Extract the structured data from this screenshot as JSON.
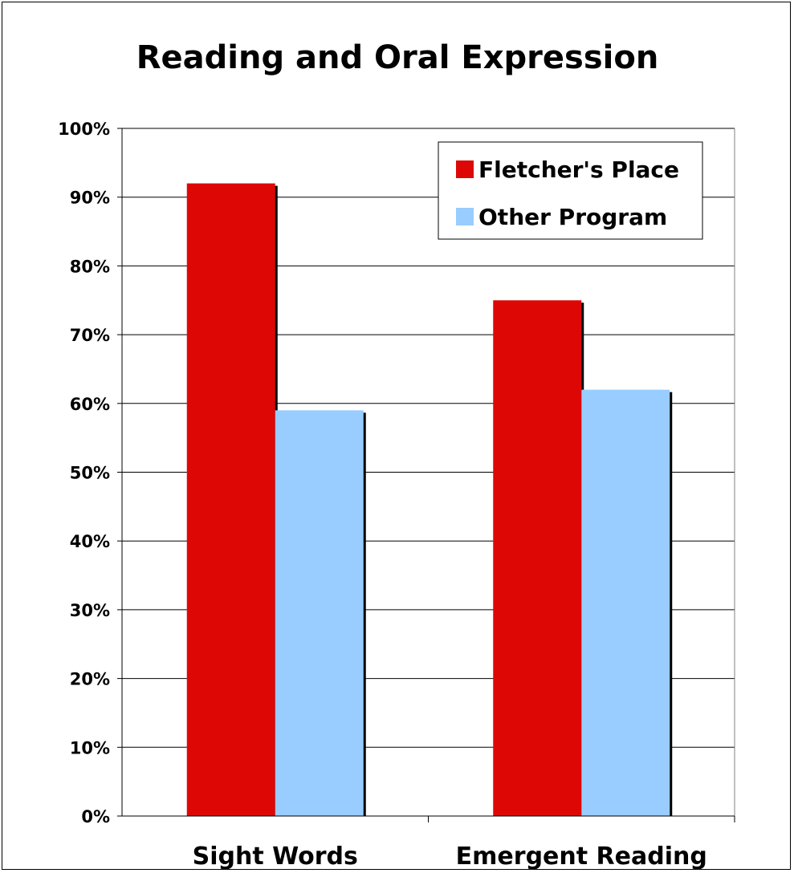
{
  "chart_data": {
    "type": "bar",
    "title": "Reading and Oral Expression",
    "xlabel": "",
    "ylabel": "",
    "categories": [
      "Sight Words",
      "Emergent Reading"
    ],
    "series": [
      {
        "name": "Fletcher's Place",
        "values": [
          92,
          75
        ],
        "color": "#dd0806"
      },
      {
        "name": "Other Program",
        "values": [
          59,
          62
        ],
        "color": "#99ccff"
      }
    ],
    "ylim": [
      0,
      100
    ],
    "yticks": [
      "0%",
      "10%",
      "20%",
      "30%",
      "40%",
      "50%",
      "60%",
      "70%",
      "80%",
      "90%",
      "100%"
    ],
    "grid": true,
    "legend_position": "top-right"
  }
}
